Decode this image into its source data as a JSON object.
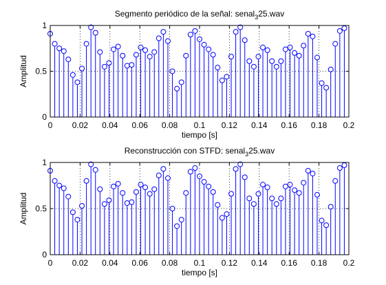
{
  "chart_data": [
    {
      "type": "stem",
      "title_prefix": "Segmento periódico de la señal: senal",
      "title_sub": "3",
      "title_suffix": "25.wav",
      "xlabel": "tiempo [s]",
      "ylabel": "Amplitud",
      "xlim": [
        0,
        0.2
      ],
      "ylim": [
        0,
        1
      ],
      "xticks": [
        0,
        0.02,
        0.04,
        0.06,
        0.08,
        0.1,
        0.12,
        0.14,
        0.16,
        0.18,
        0.2
      ],
      "xtick_labels": [
        "0",
        "0.02",
        "0.04",
        "0.06",
        "0.08",
        "0.1",
        "0.12",
        "0.14",
        "0.16",
        "0.18",
        "0.2"
      ],
      "yticks": [
        0,
        0.5,
        1
      ],
      "ytick_labels": [
        "0",
        "0.5",
        "1"
      ],
      "grid": "dotted",
      "color": "#0000ff",
      "x": [
        0.0,
        0.00303,
        0.00606,
        0.00909,
        0.01212,
        0.01515,
        0.01818,
        0.02121,
        0.02424,
        0.02727,
        0.0303,
        0.03333,
        0.03636,
        0.03939,
        0.04242,
        0.04545,
        0.04848,
        0.05152,
        0.05455,
        0.05758,
        0.06061,
        0.06364,
        0.06667,
        0.0697,
        0.07273,
        0.07576,
        0.07879,
        0.08182,
        0.08485,
        0.08788,
        0.09091,
        0.09394,
        0.09697,
        0.1,
        0.10303,
        0.10606,
        0.10909,
        0.11212,
        0.11515,
        0.11818,
        0.12121,
        0.12424,
        0.12727,
        0.1303,
        0.13333,
        0.13636,
        0.13939,
        0.14242,
        0.14545,
        0.14848,
        0.15152,
        0.15455,
        0.15758,
        0.16061,
        0.16364,
        0.16667,
        0.1697,
        0.17273,
        0.17576,
        0.17879,
        0.18182,
        0.18485,
        0.18788,
        0.19091,
        0.19394,
        0.19697
      ],
      "y": [
        0.91,
        0.8,
        0.75,
        0.72,
        0.63,
        0.46,
        0.38,
        0.53,
        0.8,
        0.98,
        0.92,
        0.71,
        0.55,
        0.59,
        0.74,
        0.77,
        0.67,
        0.56,
        0.57,
        0.68,
        0.76,
        0.73,
        0.66,
        0.71,
        0.86,
        0.93,
        0.83,
        0.5,
        0.31,
        0.38,
        0.67,
        0.9,
        0.94,
        0.85,
        0.79,
        0.74,
        0.68,
        0.54,
        0.4,
        0.44,
        0.66,
        0.93,
        0.98,
        0.84,
        0.61,
        0.55,
        0.66,
        0.76,
        0.73,
        0.61,
        0.55,
        0.61,
        0.74,
        0.76,
        0.7,
        0.67,
        0.78,
        0.91,
        0.88,
        0.65,
        0.37,
        0.32,
        0.52,
        0.8,
        0.94,
        0.97
      ]
    },
    {
      "type": "stem",
      "title_prefix": "Reconstrucción con STFD: senal",
      "title_sub": "3",
      "title_suffix": "25.wav",
      "xlabel": "tiempo [s]",
      "ylabel": "Amplitud",
      "xlim": [
        0,
        0.2
      ],
      "ylim": [
        0,
        1
      ],
      "xticks": [
        0,
        0.02,
        0.04,
        0.06,
        0.08,
        0.1,
        0.12,
        0.14,
        0.16,
        0.18,
        0.2
      ],
      "xtick_labels": [
        "0",
        "0.02",
        "0.04",
        "0.06",
        "0.08",
        "0.1",
        "0.12",
        "0.14",
        "0.16",
        "0.18",
        "0.2"
      ],
      "yticks": [
        0,
        0.5,
        1
      ],
      "ytick_labels": [
        "0",
        "0.5",
        "1"
      ],
      "grid": "dotted",
      "color": "#0000ff",
      "x": [
        0.0,
        0.00303,
        0.00606,
        0.00909,
        0.01212,
        0.01515,
        0.01818,
        0.02121,
        0.02424,
        0.02727,
        0.0303,
        0.03333,
        0.03636,
        0.03939,
        0.04242,
        0.04545,
        0.04848,
        0.05152,
        0.05455,
        0.05758,
        0.06061,
        0.06364,
        0.06667,
        0.0697,
        0.07273,
        0.07576,
        0.07879,
        0.08182,
        0.08485,
        0.08788,
        0.09091,
        0.09394,
        0.09697,
        0.1,
        0.10303,
        0.10606,
        0.10909,
        0.11212,
        0.11515,
        0.11818,
        0.12121,
        0.12424,
        0.12727,
        0.1303,
        0.13333,
        0.13636,
        0.13939,
        0.14242,
        0.14545,
        0.14848,
        0.15152,
        0.15455,
        0.15758,
        0.16061,
        0.16364,
        0.16667,
        0.1697,
        0.17273,
        0.17576,
        0.17879,
        0.18182,
        0.18485,
        0.18788,
        0.19091,
        0.19394,
        0.19697
      ],
      "y": [
        0.91,
        0.8,
        0.75,
        0.72,
        0.63,
        0.46,
        0.38,
        0.53,
        0.8,
        0.98,
        0.92,
        0.71,
        0.55,
        0.59,
        0.74,
        0.77,
        0.67,
        0.56,
        0.57,
        0.68,
        0.76,
        0.73,
        0.66,
        0.71,
        0.86,
        0.93,
        0.83,
        0.5,
        0.31,
        0.38,
        0.67,
        0.9,
        0.94,
        0.85,
        0.79,
        0.74,
        0.68,
        0.54,
        0.4,
        0.44,
        0.66,
        0.93,
        0.98,
        0.84,
        0.61,
        0.55,
        0.66,
        0.76,
        0.73,
        0.61,
        0.55,
        0.61,
        0.74,
        0.76,
        0.7,
        0.67,
        0.78,
        0.91,
        0.88,
        0.65,
        0.37,
        0.32,
        0.52,
        0.8,
        0.94,
        0.97
      ]
    }
  ]
}
